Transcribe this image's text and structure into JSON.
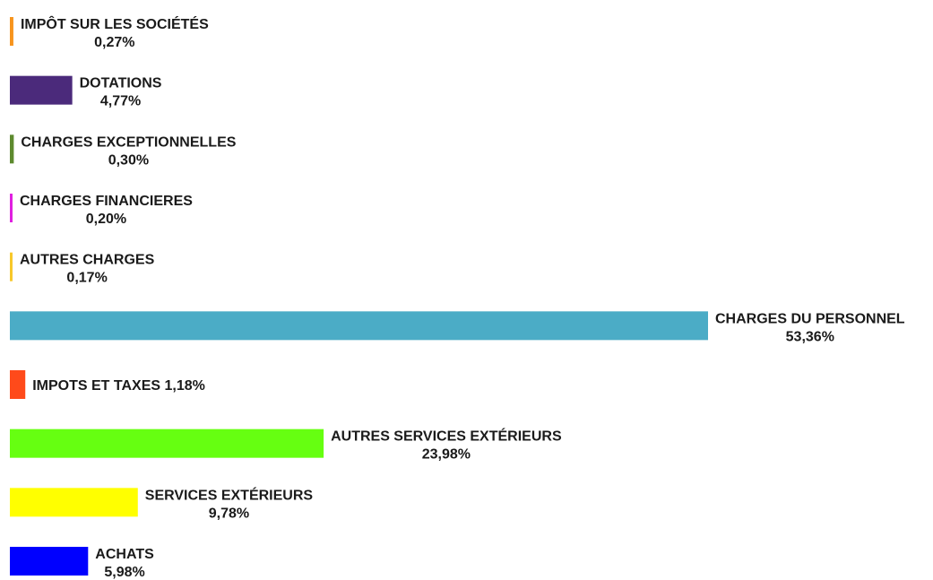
{
  "chart_data": {
    "type": "bar",
    "orientation": "horizontal",
    "unit": "%",
    "categories": [
      "IMPÔT SUR LES SOCIÉTÉS",
      "DOTATIONS",
      "CHARGES EXCEPTIONNELLES",
      "CHARGES FINANCIERES",
      "AUTRES CHARGES",
      "CHARGES DU PERSONNEL",
      "IMPOTS ET TAXES",
      "AUTRES SERVICES EXTÉRIEURS",
      "SERVICES EXTÉRIEURS",
      "ACHATS"
    ],
    "values": [
      0.27,
      4.77,
      0.3,
      0.2,
      0.17,
      53.36,
      1.18,
      23.98,
      9.78,
      5.98
    ],
    "value_labels": [
      "0,27%",
      "4,77%",
      "0,30%",
      "0,20%",
      "0,17%",
      "53,36%",
      "1,18%",
      "23,98%",
      "9,78%",
      "5,98%"
    ],
    "colors": [
      "#F7941D",
      "#4B2A7B",
      "#5D8A2E",
      "#E020E0",
      "#F7C82A",
      "#4BACC6",
      "#FF4A1A",
      "#66FF11",
      "#FFFF00",
      "#0000FF"
    ],
    "label_style": [
      "stacked",
      "stacked",
      "stacked",
      "stacked",
      "stacked",
      "stacked",
      "inline",
      "stacked",
      "stacked",
      "stacked"
    ],
    "xlim": [
      0,
      100
    ],
    "grid": false,
    "legend": "none",
    "title": "",
    "xlabel": "",
    "ylabel": ""
  }
}
